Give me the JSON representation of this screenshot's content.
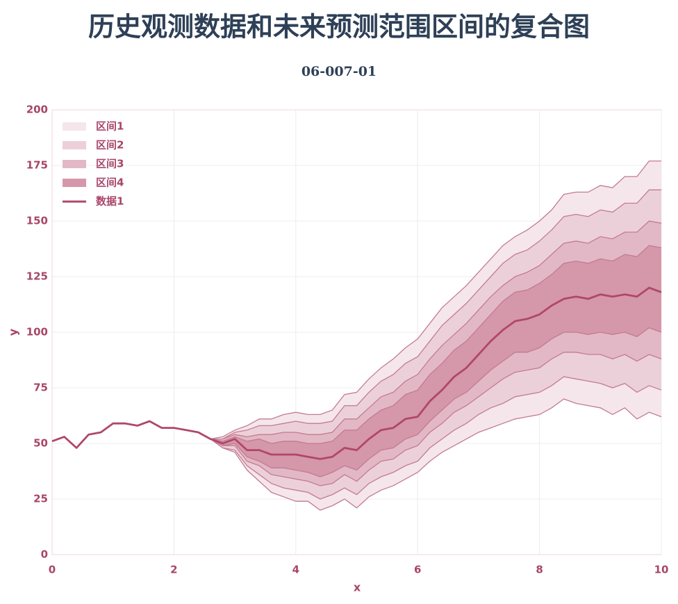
{
  "chart_data": {
    "type": "fan",
    "title": "历史观测数据和未来预测范围区间的复合图",
    "subtitle": "06-007-01",
    "xlabel": "x",
    "ylabel": "y",
    "xlim": [
      0,
      10
    ],
    "xticks": [
      0,
      2,
      4,
      6,
      8,
      10
    ],
    "ylim": [
      0,
      200
    ],
    "yticks": [
      0,
      25,
      50,
      75,
      100,
      125,
      150,
      175,
      200
    ],
    "grid": true,
    "legend": "upper left",
    "series": [
      {
        "name": "区间1",
        "type": "band",
        "color": "#f5e6eb",
        "x": [
          2.6,
          2.8,
          3.0,
          3.2,
          3.4,
          3.6,
          3.8,
          4.0,
          4.2,
          4.4,
          4.6,
          4.8,
          5.0,
          5.2,
          5.4,
          5.6,
          5.8,
          6.0,
          6.2,
          6.4,
          6.6,
          6.8,
          7.0,
          7.2,
          7.4,
          7.6,
          7.8,
          8.0,
          8.2,
          8.4,
          8.6,
          8.8,
          9.0,
          9.2,
          9.4,
          9.6,
          9.8,
          10.0
        ],
        "upper": [
          52,
          53,
          56,
          58,
          61,
          61,
          63,
          64,
          63,
          63,
          65,
          72,
          73,
          79,
          84,
          88,
          93,
          97,
          104,
          111,
          116,
          121,
          127,
          133,
          139,
          143,
          146,
          150,
          155,
          162,
          163,
          163,
          166,
          165,
          170,
          170,
          177,
          177
        ],
        "lower": [
          52,
          48,
          46,
          38,
          33,
          28,
          26,
          24,
          24,
          20,
          22,
          25,
          21,
          26,
          29,
          31,
          34,
          37,
          42,
          46,
          49,
          52,
          55,
          57,
          59,
          61,
          62,
          63,
          66,
          70,
          68,
          67,
          66,
          63,
          66,
          61,
          64,
          62
        ]
      },
      {
        "name": "区间2",
        "type": "band",
        "color": "#ecd0d9",
        "x": [
          2.6,
          2.8,
          3.0,
          3.2,
          3.4,
          3.6,
          3.8,
          4.0,
          4.2,
          4.4,
          4.6,
          4.8,
          5.0,
          5.2,
          5.4,
          5.6,
          5.8,
          6.0,
          6.2,
          6.4,
          6.6,
          6.8,
          7.0,
          7.2,
          7.4,
          7.6,
          7.8,
          8.0,
          8.2,
          8.4,
          8.6,
          8.8,
          9.0,
          9.2,
          9.4,
          9.6,
          9.8,
          10.0
        ],
        "upper": [
          52,
          52,
          55,
          56,
          58,
          58,
          59,
          60,
          59,
          59,
          60,
          67,
          67,
          73,
          78,
          81,
          86,
          89,
          96,
          103,
          108,
          113,
          119,
          125,
          131,
          135,
          137,
          141,
          146,
          152,
          153,
          152,
          155,
          154,
          158,
          158,
          164,
          164
        ],
        "lower": [
          52,
          48,
          47,
          40,
          36,
          32,
          30,
          29,
          28,
          25,
          27,
          30,
          27,
          32,
          35,
          37,
          40,
          42,
          48,
          52,
          56,
          59,
          63,
          66,
          68,
          71,
          72,
          73,
          76,
          80,
          79,
          78,
          77,
          75,
          77,
          73,
          76,
          74
        ]
      },
      {
        "name": "区间3",
        "type": "band",
        "color": "#e3b8c6",
        "x": [
          2.6,
          2.8,
          3.0,
          3.2,
          3.4,
          3.6,
          3.8,
          4.0,
          4.2,
          4.4,
          4.6,
          4.8,
          5.0,
          5.2,
          5.4,
          5.6,
          5.8,
          6.0,
          6.2,
          6.4,
          6.6,
          6.8,
          7.0,
          7.2,
          7.4,
          7.6,
          7.8,
          8.0,
          8.2,
          8.4,
          8.6,
          8.8,
          9.0,
          9.2,
          9.4,
          9.6,
          9.8,
          10.0
        ],
        "upper": [
          52,
          52,
          54,
          53,
          54,
          54,
          55,
          55,
          54,
          54,
          55,
          61,
          61,
          66,
          71,
          73,
          78,
          81,
          88,
          94,
          99,
          104,
          110,
          116,
          121,
          125,
          127,
          130,
          135,
          140,
          141,
          140,
          143,
          142,
          145,
          145,
          150,
          149
        ],
        "lower": [
          52,
          49,
          49,
          42,
          40,
          36,
          35,
          34,
          33,
          31,
          32,
          36,
          33,
          38,
          42,
          43,
          47,
          49,
          55,
          59,
          64,
          67,
          71,
          75,
          79,
          82,
          83,
          84,
          88,
          91,
          91,
          90,
          90,
          88,
          90,
          87,
          90,
          88
        ]
      },
      {
        "name": "区间4",
        "type": "band",
        "color": "#d597aa",
        "x": [
          2.6,
          2.8,
          3.0,
          3.2,
          3.4,
          3.6,
          3.8,
          4.0,
          4.2,
          4.4,
          4.6,
          4.8,
          5.0,
          5.2,
          5.4,
          5.6,
          5.8,
          6.0,
          6.2,
          6.4,
          6.6,
          6.8,
          7.0,
          7.2,
          7.4,
          7.6,
          7.8,
          8.0,
          8.2,
          8.4,
          8.6,
          8.8,
          9.0,
          9.2,
          9.4,
          9.6,
          9.8,
          10.0
        ],
        "upper": [
          52,
          51,
          53,
          51,
          52,
          50,
          51,
          51,
          50,
          50,
          51,
          56,
          56,
          61,
          65,
          67,
          72,
          74,
          81,
          86,
          92,
          96,
          102,
          108,
          114,
          118,
          119,
          122,
          126,
          131,
          132,
          131,
          133,
          132,
          135,
          134,
          139,
          138
        ],
        "lower": [
          52,
          49,
          50,
          44,
          42,
          39,
          39,
          38,
          37,
          35,
          37,
          40,
          38,
          43,
          47,
          48,
          52,
          54,
          60,
          65,
          70,
          73,
          78,
          83,
          87,
          91,
          91,
          93,
          97,
          100,
          100,
          99,
          100,
          99,
          100,
          98,
          102,
          100
        ]
      },
      {
        "name": "数据1",
        "type": "line",
        "color": "#b0476a",
        "x": [
          0,
          0.2,
          0.4,
          0.6,
          0.8,
          1.0,
          1.2,
          1.4,
          1.6,
          1.8,
          2.0,
          2.2,
          2.4,
          2.6,
          2.8,
          3.0,
          3.2,
          3.4,
          3.6,
          3.8,
          4.0,
          4.2,
          4.4,
          4.6,
          4.8,
          5.0,
          5.2,
          5.4,
          5.6,
          5.8,
          6.0,
          6.2,
          6.4,
          6.6,
          6.8,
          7.0,
          7.2,
          7.4,
          7.6,
          7.8,
          8.0,
          8.2,
          8.4,
          8.6,
          8.8,
          9.0,
          9.2,
          9.4,
          9.6,
          9.8,
          10.0
        ],
        "values": [
          51,
          53,
          48,
          54,
          55,
          59,
          59,
          58,
          60,
          57,
          57,
          56,
          55,
          52,
          50,
          52,
          47,
          47,
          45,
          45,
          45,
          44,
          43,
          44,
          48,
          47,
          52,
          56,
          57,
          61,
          62,
          69,
          74,
          80,
          84,
          90,
          96,
          101,
          105,
          106,
          108,
          112,
          115,
          116,
          115,
          117,
          116,
          117,
          116,
          120,
          118
        ]
      }
    ]
  }
}
